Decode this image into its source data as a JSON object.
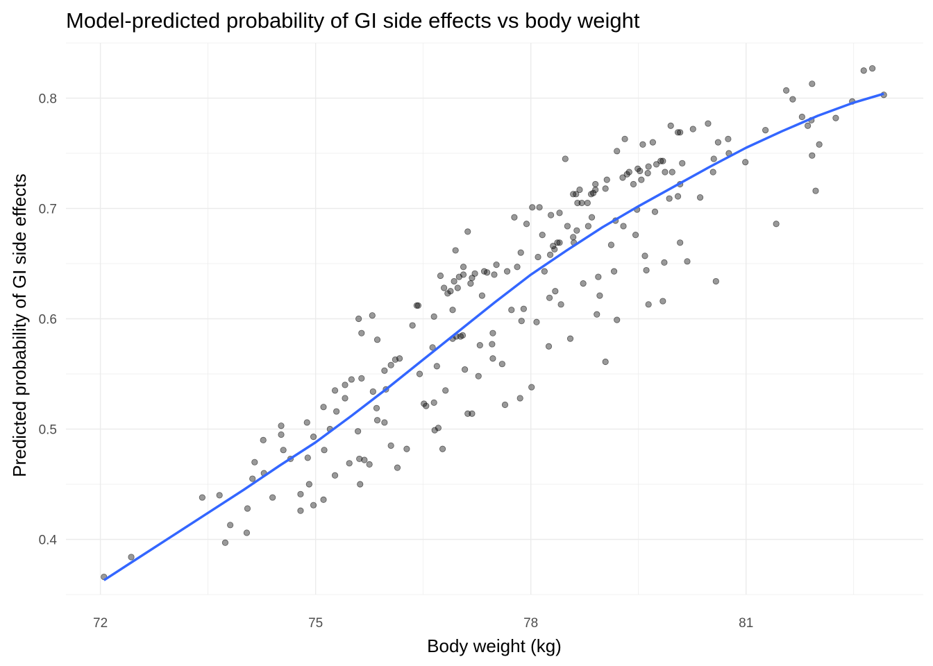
{
  "chart_data": {
    "type": "scatter",
    "title": "Model-predicted probability of GI side effects vs body weight",
    "xlabel": "Body weight (kg)",
    "ylabel": "Predicted probability of GI side effects",
    "xlim": [
      71.52,
      83.47
    ],
    "ylim": [
      0.35,
      0.85
    ],
    "x_ticks": [
      72,
      75,
      78,
      81
    ],
    "x_tick_labels": [
      "72",
      "75",
      "78",
      "81"
    ],
    "y_ticks": [
      0.4,
      0.5,
      0.6,
      0.7,
      0.8
    ],
    "y_tick_labels": [
      "0.4",
      "0.5",
      "0.6",
      "0.7",
      "0.8"
    ],
    "grid": true,
    "colors": {
      "points": "#000000",
      "smooth_line": "#3366FF",
      "grid": "#ebebeb"
    },
    "points": [
      [
        72.05,
        0.366
      ],
      [
        72.43,
        0.384
      ],
      [
        73.42,
        0.438
      ],
      [
        73.66,
        0.44
      ],
      [
        73.81,
        0.413
      ],
      [
        73.74,
        0.397
      ],
      [
        74.05,
        0.428
      ],
      [
        74.04,
        0.406
      ],
      [
        74.12,
        0.455
      ],
      [
        74.15,
        0.47
      ],
      [
        74.27,
        0.49
      ],
      [
        74.28,
        0.46
      ],
      [
        74.4,
        0.438
      ],
      [
        74.52,
        0.503
      ],
      [
        74.52,
        0.495
      ],
      [
        74.55,
        0.481
      ],
      [
        74.65,
        0.473
      ],
      [
        74.79,
        0.441
      ],
      [
        74.79,
        0.426
      ],
      [
        74.88,
        0.506
      ],
      [
        74.89,
        0.474
      ],
      [
        74.91,
        0.45
      ],
      [
        74.97,
        0.493
      ],
      [
        74.97,
        0.431
      ],
      [
        75.11,
        0.436
      ],
      [
        75.11,
        0.52
      ],
      [
        75.12,
        0.481
      ],
      [
        75.2,
        0.5
      ],
      [
        75.27,
        0.458
      ],
      [
        75.27,
        0.535
      ],
      [
        75.29,
        0.516
      ],
      [
        75.41,
        0.528
      ],
      [
        75.41,
        0.54
      ],
      [
        75.5,
        0.545
      ],
      [
        75.47,
        0.469
      ],
      [
        75.59,
        0.498
      ],
      [
        75.6,
        0.6
      ],
      [
        75.62,
        0.45
      ],
      [
        75.64,
        0.546
      ],
      [
        75.64,
        0.587
      ],
      [
        75.61,
        0.473
      ],
      [
        75.68,
        0.472
      ],
      [
        75.75,
        0.468
      ],
      [
        75.79,
        0.603
      ],
      [
        75.8,
        0.534
      ],
      [
        75.85,
        0.519
      ],
      [
        75.86,
        0.581
      ],
      [
        75.86,
        0.508
      ],
      [
        75.96,
        0.506
      ],
      [
        75.96,
        0.553
      ],
      [
        75.98,
        0.536
      ],
      [
        76.05,
        0.485
      ],
      [
        76.05,
        0.558
      ],
      [
        76.11,
        0.563
      ],
      [
        76.17,
        0.564
      ],
      [
        76.14,
        0.465
      ],
      [
        76.27,
        0.482
      ],
      [
        76.35,
        0.594
      ],
      [
        76.41,
        0.612
      ],
      [
        76.43,
        0.612
      ],
      [
        76.45,
        0.55
      ],
      [
        76.51,
        0.523
      ],
      [
        76.54,
        0.521
      ],
      [
        76.63,
        0.574
      ],
      [
        76.65,
        0.524
      ],
      [
        76.65,
        0.602
      ],
      [
        76.69,
        0.557
      ],
      [
        76.66,
        0.499
      ],
      [
        76.71,
        0.501
      ],
      [
        76.74,
        0.639
      ],
      [
        76.77,
        0.482
      ],
      [
        76.81,
        0.535
      ],
      [
        76.79,
        0.628
      ],
      [
        76.84,
        0.623
      ],
      [
        76.88,
        0.625
      ],
      [
        76.91,
        0.608
      ],
      [
        76.93,
        0.634
      ],
      [
        76.95,
        0.662
      ],
      [
        76.91,
        0.582
      ],
      [
        76.96,
        0.584
      ],
      [
        77.0,
        0.638
      ],
      [
        77.02,
        0.584
      ],
      [
        77.05,
        0.585
      ],
      [
        77.06,
        0.647
      ],
      [
        77.06,
        0.64
      ],
      [
        76.98,
        0.628
      ],
      [
        77.08,
        0.554
      ],
      [
        77.12,
        0.514
      ],
      [
        77.12,
        0.679
      ],
      [
        77.18,
        0.514
      ],
      [
        77.16,
        0.632
      ],
      [
        77.18,
        0.637
      ],
      [
        77.22,
        0.641
      ],
      [
        77.29,
        0.576
      ],
      [
        77.27,
        0.548
      ],
      [
        77.32,
        0.621
      ],
      [
        77.35,
        0.643
      ],
      [
        77.39,
        0.642
      ],
      [
        77.46,
        0.577
      ],
      [
        77.47,
        0.587
      ],
      [
        77.47,
        0.564
      ],
      [
        77.49,
        0.64
      ],
      [
        77.52,
        0.649
      ],
      [
        77.6,
        0.559
      ],
      [
        77.64,
        0.522
      ],
      [
        77.67,
        0.643
      ],
      [
        77.73,
        0.608
      ],
      [
        77.77,
        0.692
      ],
      [
        77.81,
        0.647
      ],
      [
        77.85,
        0.528
      ],
      [
        77.86,
        0.66
      ],
      [
        77.87,
        0.598
      ],
      [
        77.9,
        0.609
      ],
      [
        77.94,
        0.686
      ],
      [
        78.01,
        0.538
      ],
      [
        78.02,
        0.701
      ],
      [
        78.08,
        0.597
      ],
      [
        78.1,
        0.656
      ],
      [
        78.12,
        0.701
      ],
      [
        78.16,
        0.676
      ],
      [
        78.19,
        0.643
      ],
      [
        78.25,
        0.575
      ],
      [
        78.26,
        0.619
      ],
      [
        78.27,
        0.658
      ],
      [
        78.28,
        0.694
      ],
      [
        78.31,
        0.666
      ],
      [
        78.33,
        0.663
      ],
      [
        78.34,
        0.625
      ],
      [
        78.37,
        0.669
      ],
      [
        78.4,
        0.669
      ],
      [
        78.42,
        0.613
      ],
      [
        78.4,
        0.696
      ],
      [
        78.48,
        0.745
      ],
      [
        78.51,
        0.684
      ],
      [
        78.55,
        0.582
      ],
      [
        78.59,
        0.674
      ],
      [
        78.6,
        0.669
      ],
      [
        78.59,
        0.713
      ],
      [
        78.63,
        0.713
      ],
      [
        78.64,
        0.68
      ],
      [
        78.65,
        0.705
      ],
      [
        78.68,
        0.717
      ],
      [
        78.71,
        0.705
      ],
      [
        78.73,
        0.632
      ],
      [
        78.79,
        0.705
      ],
      [
        78.8,
        0.684
      ],
      [
        78.84,
        0.713
      ],
      [
        78.87,
        0.714
      ],
      [
        78.85,
        0.692
      ],
      [
        78.9,
        0.717
      ],
      [
        78.9,
        0.722
      ],
      [
        78.92,
        0.604
      ],
      [
        78.94,
        0.638
      ],
      [
        78.96,
        0.621
      ],
      [
        79.04,
        0.718
      ],
      [
        79.04,
        0.561
      ],
      [
        79.06,
        0.726
      ],
      [
        79.12,
        0.667
      ],
      [
        79.16,
        0.643
      ],
      [
        79.18,
        0.689
      ],
      [
        79.2,
        0.752
      ],
      [
        79.2,
        0.599
      ],
      [
        79.28,
        0.728
      ],
      [
        79.29,
        0.684
      ],
      [
        79.31,
        0.763
      ],
      [
        79.34,
        0.731
      ],
      [
        79.37,
        0.733
      ],
      [
        79.43,
        0.722
      ],
      [
        79.46,
        0.676
      ],
      [
        79.48,
        0.699
      ],
      [
        79.49,
        0.736
      ],
      [
        79.52,
        0.734
      ],
      [
        79.54,
        0.726
      ],
      [
        79.56,
        0.758
      ],
      [
        79.59,
        0.657
      ],
      [
        79.61,
        0.644
      ],
      [
        79.63,
        0.732
      ],
      [
        79.64,
        0.738
      ],
      [
        79.64,
        0.613
      ],
      [
        79.7,
        0.76
      ],
      [
        79.73,
        0.697
      ],
      [
        79.75,
        0.74
      ],
      [
        79.81,
        0.743
      ],
      [
        79.84,
        0.743
      ],
      [
        79.86,
        0.651
      ],
      [
        79.84,
        0.616
      ],
      [
        79.87,
        0.733
      ],
      [
        79.93,
        0.709
      ],
      [
        79.95,
        0.775
      ],
      [
        79.97,
        0.733
      ],
      [
        80.05,
        0.769
      ],
      [
        80.05,
        0.711
      ],
      [
        80.08,
        0.769
      ],
      [
        80.08,
        0.722
      ],
      [
        80.08,
        0.669
      ],
      [
        80.11,
        0.741
      ],
      [
        80.18,
        0.652
      ],
      [
        80.26,
        0.772
      ],
      [
        80.36,
        0.71
      ],
      [
        80.47,
        0.777
      ],
      [
        80.54,
        0.733
      ],
      [
        80.55,
        0.745
      ],
      [
        80.58,
        0.634
      ],
      [
        80.61,
        0.76
      ],
      [
        80.75,
        0.763
      ],
      [
        80.76,
        0.75
      ],
      [
        80.99,
        0.742
      ],
      [
        81.27,
        0.771
      ],
      [
        81.42,
        0.686
      ],
      [
        81.56,
        0.807
      ],
      [
        81.65,
        0.799
      ],
      [
        81.78,
        0.783
      ],
      [
        81.86,
        0.775
      ],
      [
        81.91,
        0.78
      ],
      [
        81.92,
        0.813
      ],
      [
        81.92,
        0.748
      ],
      [
        81.97,
        0.716
      ],
      [
        82.02,
        0.758
      ],
      [
        82.25,
        0.782
      ],
      [
        82.48,
        0.797
      ],
      [
        82.64,
        0.825
      ],
      [
        82.76,
        0.827
      ],
      [
        82.92,
        0.803
      ]
    ],
    "smooth_line": [
      [
        72.05,
        0.363
      ],
      [
        72.5,
        0.382
      ],
      [
        73,
        0.403
      ],
      [
        73.5,
        0.424
      ],
      [
        74,
        0.445
      ],
      [
        74.5,
        0.467
      ],
      [
        75,
        0.488
      ],
      [
        75.5,
        0.512
      ],
      [
        76,
        0.537
      ],
      [
        76.5,
        0.563
      ],
      [
        77,
        0.589
      ],
      [
        77.5,
        0.615
      ],
      [
        78,
        0.64
      ],
      [
        78.5,
        0.662
      ],
      [
        79,
        0.683
      ],
      [
        79.5,
        0.702
      ],
      [
        80,
        0.72
      ],
      [
        80.5,
        0.738
      ],
      [
        81,
        0.755
      ],
      [
        81.5,
        0.77
      ],
      [
        82,
        0.784
      ],
      [
        82.5,
        0.796
      ],
      [
        82.92,
        0.804
      ]
    ]
  }
}
